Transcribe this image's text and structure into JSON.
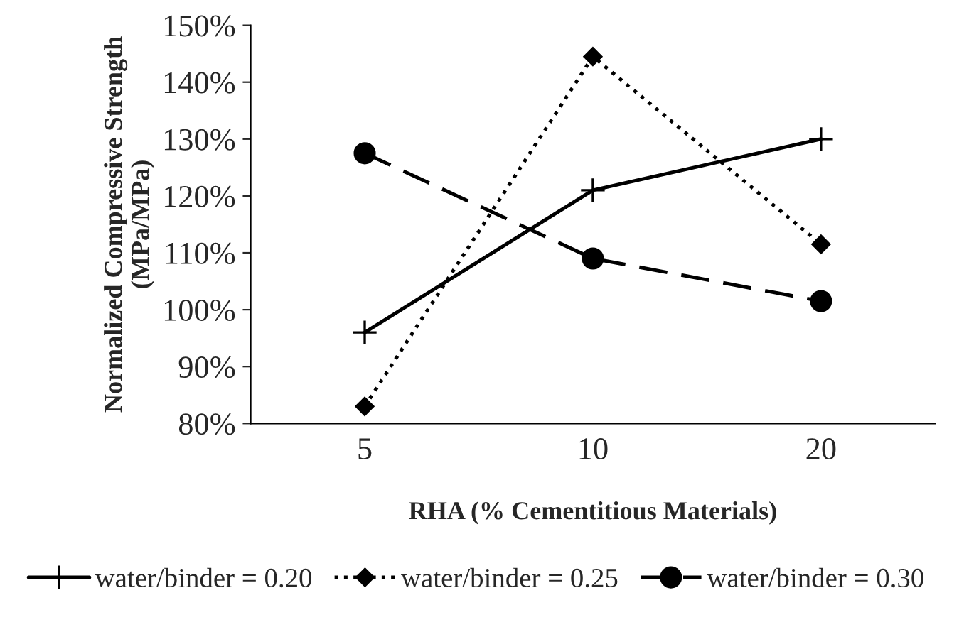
{
  "chart_data": {
    "type": "line",
    "xlabel": "RHA (% Cementitious Materials)",
    "ylabel": "Normalized Compressive Strength\n(MPa/MPa)",
    "categories": [
      "5",
      "10",
      "20"
    ],
    "series": [
      {
        "name": "water/binder = 0.20",
        "color": "#000000",
        "values": [
          96,
          121,
          130
        ],
        "marker": "cross",
        "line_style": "solid"
      },
      {
        "name": "water/binder = 0.25",
        "color": "#000000",
        "values": [
          83,
          144.5,
          111.5
        ],
        "marker": "diamond",
        "line_style": "dotted"
      },
      {
        "name": "water/binder = 0.30",
        "color": "#000000",
        "values": [
          127.5,
          109,
          101.5
        ],
        "marker": "circle",
        "line_style": "dashed"
      }
    ],
    "ylim": [
      80,
      150
    ],
    "yticks": [
      {
        "value": 80,
        "label": "80%"
      },
      {
        "value": 90,
        "label": "90%"
      },
      {
        "value": 100,
        "label": "100%"
      },
      {
        "value": 110,
        "label": "110%"
      },
      {
        "value": 120,
        "label": "120%"
      },
      {
        "value": 130,
        "label": "130%"
      },
      {
        "value": 140,
        "label": "140%"
      },
      {
        "value": 150,
        "label": "150%"
      }
    ],
    "grid": false,
    "legend": "bottom"
  }
}
